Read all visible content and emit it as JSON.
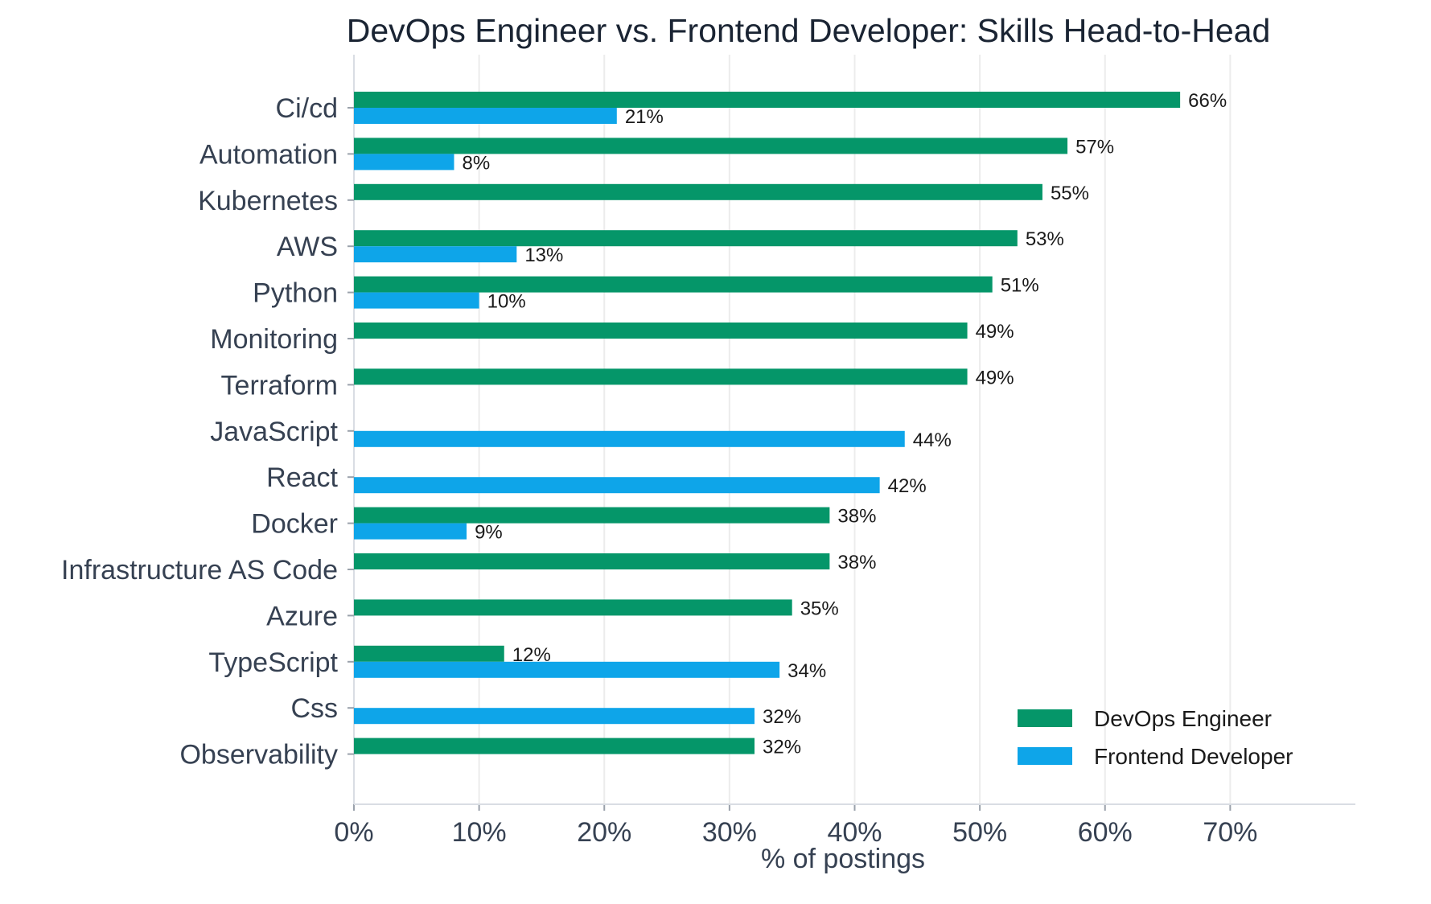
{
  "chart_data": {
    "type": "bar",
    "orientation": "horizontal",
    "title": "DevOps Engineer vs. Frontend Developer: Skills Head-to-Head",
    "xlabel": "% of postings",
    "ylabel": "",
    "xlim": [
      0,
      80
    ],
    "xticks": [
      0,
      10,
      20,
      30,
      40,
      50,
      60,
      70
    ],
    "xtick_labels": [
      "0%",
      "10%",
      "20%",
      "30%",
      "40%",
      "50%",
      "60%",
      "70%"
    ],
    "grid": "vertical",
    "legend_position": "bottom-right",
    "categories": [
      "Ci/cd",
      "Automation",
      "Kubernetes",
      "AWS",
      "Python",
      "Monitoring",
      "Terraform",
      "JavaScript",
      "React",
      "Docker",
      "Infrastructure AS Code",
      "Azure",
      "TypeScript",
      "Css",
      "Observability"
    ],
    "series": [
      {
        "name": "DevOps Engineer",
        "color": "#059669",
        "values": [
          66,
          57,
          55,
          53,
          51,
          49,
          49,
          null,
          null,
          38,
          38,
          35,
          12,
          null,
          32
        ],
        "labels": [
          "66%",
          "57%",
          "55%",
          "53%",
          "51%",
          "49%",
          "49%",
          null,
          null,
          "38%",
          "38%",
          "35%",
          "12%",
          null,
          "32%"
        ]
      },
      {
        "name": "Frontend Developer",
        "color": "#0ea5e9",
        "values": [
          21,
          8,
          null,
          13,
          10,
          null,
          null,
          44,
          42,
          9,
          null,
          null,
          34,
          32,
          null
        ],
        "labels": [
          "21%",
          "8%",
          null,
          "13%",
          "10%",
          null,
          null,
          "44%",
          "42%",
          "9%",
          null,
          null,
          "34%",
          "32%",
          null
        ]
      }
    ]
  }
}
